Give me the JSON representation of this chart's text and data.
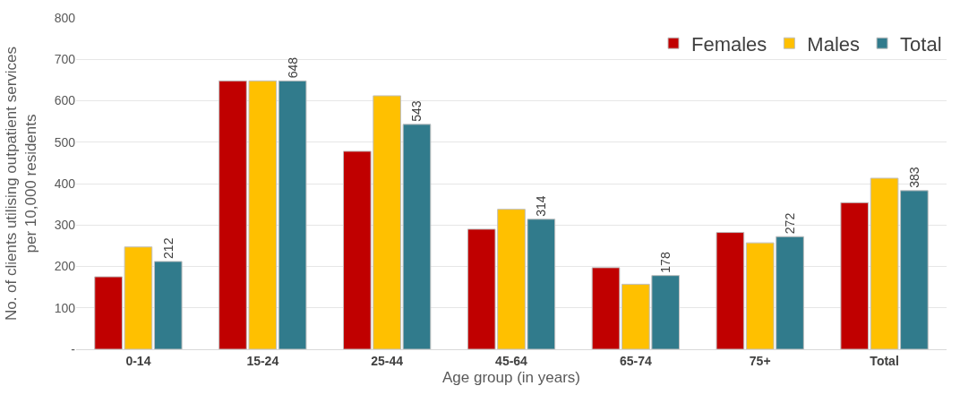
{
  "chart_data": {
    "type": "bar",
    "xlabel": "Age group (in years)",
    "ylabel": "No. of clients utilising outpatient services per 10,000 residents",
    "categories": [
      "0-14",
      "15-24",
      "25-44",
      "45-64",
      "65-74",
      "75+",
      "Total"
    ],
    "series": [
      {
        "name": "Females",
        "color": "#c00000",
        "values": [
          175,
          648,
          478,
          290,
          197,
          282,
          354
        ]
      },
      {
        "name": "Males",
        "color": "#ffc000",
        "values": [
          247,
          648,
          612,
          338,
          157,
          257,
          413
        ]
      },
      {
        "name": "Total",
        "color": "#317b8c",
        "values": [
          212,
          648,
          543,
          314,
          178,
          272,
          383
        ],
        "value_labels": [
          "212",
          "648",
          "543",
          "314",
          "178",
          "272",
          "383"
        ]
      }
    ],
    "ylim": [
      0,
      800
    ],
    "yticks": [
      {
        "value": 0,
        "label": "-"
      },
      100,
      200,
      300,
      400,
      500,
      600,
      700,
      800
    ],
    "grid": "y",
    "legend": "top right"
  }
}
